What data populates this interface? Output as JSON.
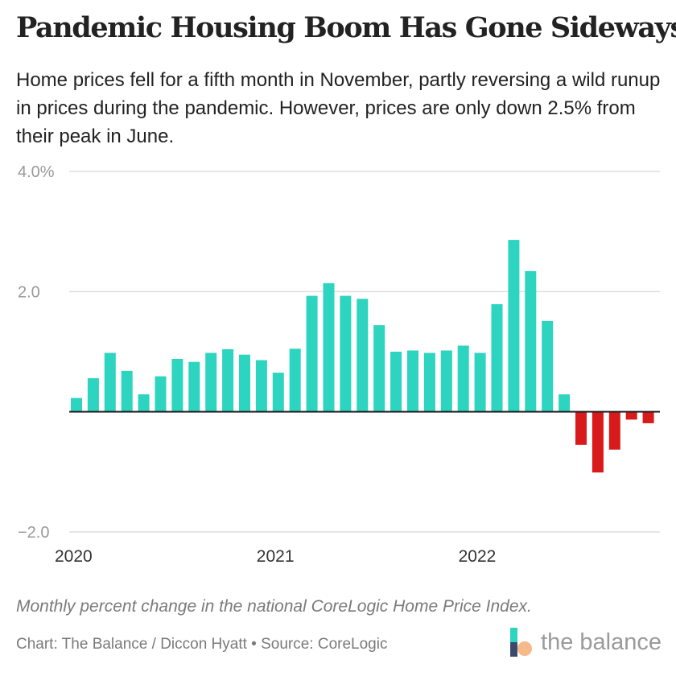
{
  "header": {
    "title": "Pandemic Housing Boom Has Gone Sideways",
    "subtitle": "Home prices fell for a fifth month in November, partly reversing a wild runup in prices during the pandemic. However, prices are only down 2.5% from their peak in June."
  },
  "footer": {
    "note": "Monthly percent change in the national CoreLogic Home Price Index.",
    "credit": "Chart: The Balance / Diccon Hyatt • Source: CoreLogic",
    "logo_text": "the balance"
  },
  "colors": {
    "positive": "#2dd4bf",
    "negative": "#d91a1a",
    "grid": "#dddddd",
    "zero_line": "#222222",
    "tick_text": "#999999",
    "xtick_text": "#333333",
    "logo_teal": "#2dd4bf",
    "logo_peach": "#f5b98a",
    "logo_navy": "#3b4a6b"
  },
  "chart_data": {
    "type": "bar",
    "title": "Pandemic Housing Boom Has Gone Sideways",
    "xlabel": "",
    "ylabel": "Monthly percent change",
    "ylim": [
      -2.0,
      4.0
    ],
    "yticks": [
      {
        "value": 4.0,
        "label": "4.0%"
      },
      {
        "value": 2.0,
        "label": "2.0"
      },
      {
        "value": -2.0,
        "label": "−2.0"
      }
    ],
    "xticks": [
      {
        "index": 0,
        "label": "2020"
      },
      {
        "index": 12,
        "label": "2021"
      },
      {
        "index": 24,
        "label": "2022"
      }
    ],
    "grid": true,
    "categories": [
      "Jan 2020",
      "Feb 2020",
      "Mar 2020",
      "Apr 2020",
      "May 2020",
      "Jun 2020",
      "Jul 2020",
      "Aug 2020",
      "Sep 2020",
      "Oct 2020",
      "Nov 2020",
      "Dec 2020",
      "Jan 2021",
      "Feb 2021",
      "Mar 2021",
      "Apr 2021",
      "May 2021",
      "Jun 2021",
      "Jul 2021",
      "Aug 2021",
      "Sep 2021",
      "Oct 2021",
      "Nov 2021",
      "Dec 2021",
      "Jan 2022",
      "Feb 2022",
      "Mar 2022",
      "Apr 2022",
      "May 2022",
      "Jun 2022",
      "Jul 2022",
      "Aug 2022",
      "Sep 2022",
      "Oct 2022",
      "Nov 2022"
    ],
    "values": [
      0.23,
      0.56,
      0.98,
      0.68,
      0.29,
      0.59,
      0.88,
      0.83,
      0.98,
      1.04,
      0.95,
      0.86,
      0.65,
      1.05,
      1.93,
      2.14,
      1.93,
      1.88,
      1.44,
      1.0,
      1.02,
      0.98,
      1.02,
      1.1,
      0.98,
      1.79,
      2.86,
      2.34,
      1.51,
      0.29,
      -0.55,
      -1.01,
      -0.63,
      -0.13,
      -0.19
    ]
  }
}
